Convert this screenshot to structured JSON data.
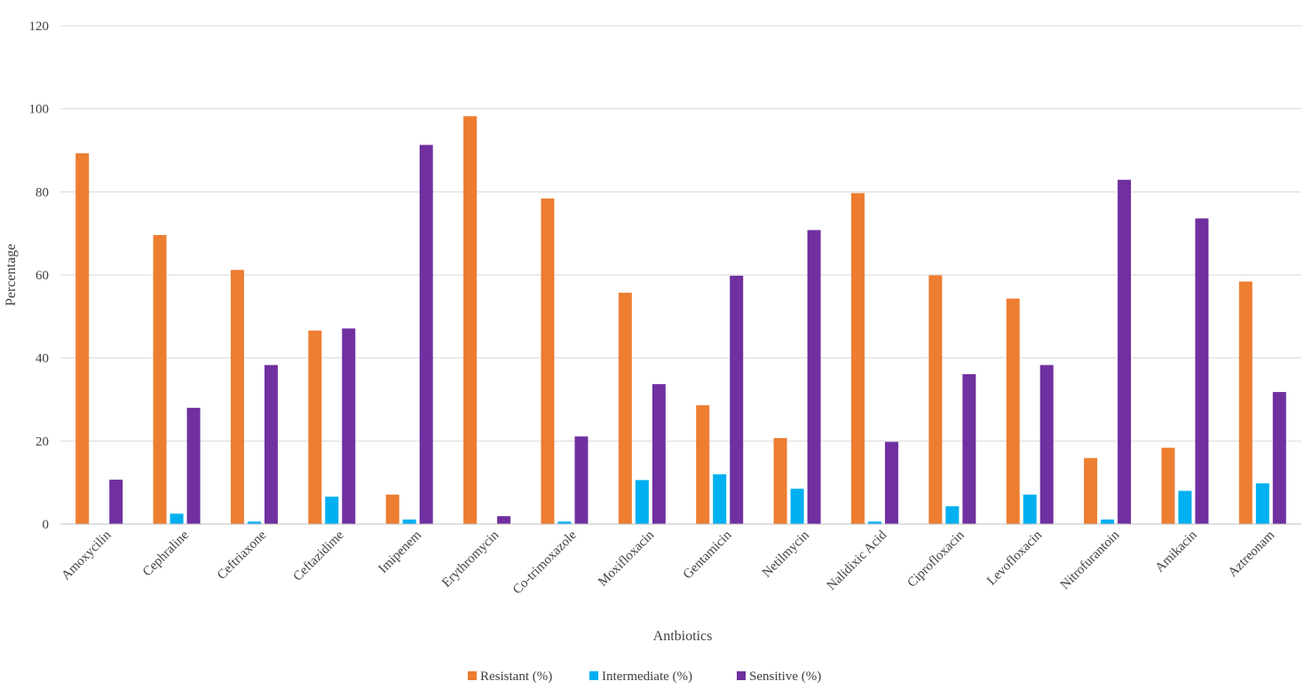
{
  "chart_data": {
    "type": "bar",
    "title": "",
    "xlabel": "Antbiotics",
    "ylabel": "Percentage",
    "ylim": [
      0,
      120
    ],
    "yticks": [
      0,
      20,
      40,
      60,
      80,
      100,
      120
    ],
    "grid": true,
    "legend_position": "bottom",
    "categories": [
      "Amoxycilin",
      "Cephraline",
      "Ceftriaxone",
      "Ceftazidime",
      "Imipenem",
      "Erythromycin",
      "Co-trimoxazole",
      "Moxifloxacin",
      "Gentamicin",
      "Netilmycin",
      "Nalidixic Acid",
      "Ciprofloxacin",
      "Levofloxacin",
      "Nitrofurantoin",
      "Amikacin",
      "Aztreonam"
    ],
    "series": [
      {
        "name": "Resistant (%)",
        "color": "#ED7D31",
        "values": [
          89.3,
          69.6,
          61.2,
          46.6,
          7.1,
          98.2,
          78.4,
          55.7,
          28.6,
          20.7,
          79.7,
          59.9,
          54.3,
          15.9,
          18.4,
          58.4
        ]
      },
      {
        "name": "Intermediate (%)",
        "color": "#00B0F0",
        "values": [
          0,
          2.5,
          0.6,
          6.6,
          1.1,
          0,
          0.6,
          10.6,
          12.0,
          8.5,
          0.6,
          4.3,
          7.1,
          1.1,
          8.0,
          9.8
        ]
      },
      {
        "name": "Sensitive (%)",
        "color": "#7030A0",
        "values": [
          10.7,
          28.0,
          38.3,
          47.1,
          91.3,
          1.9,
          21.1,
          33.7,
          59.8,
          70.8,
          19.8,
          36.1,
          38.3,
          82.9,
          73.6,
          31.8
        ]
      }
    ]
  }
}
